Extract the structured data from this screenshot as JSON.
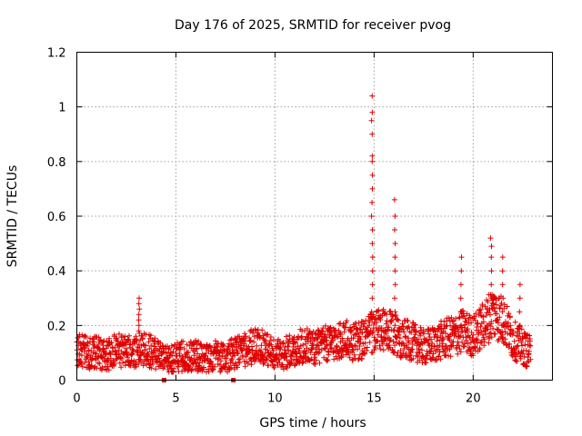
{
  "chart_data": {
    "type": "scatter",
    "title": "Day 176 of 2025, SRMTID for receiver pvog",
    "xlabel": "GPS time / hours",
    "ylabel": "SRMTID / TECUs",
    "xlim": [
      0,
      24
    ],
    "ylim": [
      0,
      1.2
    ],
    "x_ticks": [
      0,
      5,
      10,
      15,
      20
    ],
    "x_tick_labels": [
      "0",
      "5",
      "10",
      "15",
      "20"
    ],
    "y_ticks": [
      0,
      0.2,
      0.4,
      0.6,
      0.8,
      1.0,
      1.2
    ],
    "y_tick_labels": [
      "0",
      "0.2",
      "0.4",
      "0.6",
      "0.8",
      "1",
      "1.2"
    ],
    "grid": true,
    "series_color": "#e00000",
    "marker": "plus",
    "baseline": [
      [
        0.0,
        0.11
      ],
      [
        0.5,
        0.1
      ],
      [
        1.0,
        0.1
      ],
      [
        1.5,
        0.09
      ],
      [
        2.0,
        0.11
      ],
      [
        2.5,
        0.1
      ],
      [
        3.0,
        0.11
      ],
      [
        3.5,
        0.11
      ],
      [
        4.0,
        0.1
      ],
      [
        4.5,
        0.07
      ],
      [
        5.0,
        0.08
      ],
      [
        5.5,
        0.09
      ],
      [
        6.0,
        0.09
      ],
      [
        6.5,
        0.08
      ],
      [
        7.0,
        0.09
      ],
      [
        7.5,
        0.08
      ],
      [
        8.0,
        0.1
      ],
      [
        8.5,
        0.11
      ],
      [
        9.0,
        0.13
      ],
      [
        9.5,
        0.12
      ],
      [
        10.0,
        0.09
      ],
      [
        10.5,
        0.1
      ],
      [
        11.0,
        0.11
      ],
      [
        11.5,
        0.13
      ],
      [
        12.0,
        0.12
      ],
      [
        12.5,
        0.13
      ],
      [
        13.0,
        0.14
      ],
      [
        13.5,
        0.15
      ],
      [
        14.0,
        0.14
      ],
      [
        14.5,
        0.15
      ],
      [
        15.0,
        0.18
      ],
      [
        15.5,
        0.18
      ],
      [
        16.0,
        0.17
      ],
      [
        16.5,
        0.15
      ],
      [
        17.0,
        0.14
      ],
      [
        17.5,
        0.12
      ],
      [
        18.0,
        0.13
      ],
      [
        18.5,
        0.15
      ],
      [
        19.0,
        0.16
      ],
      [
        19.5,
        0.18
      ],
      [
        20.0,
        0.16
      ],
      [
        20.5,
        0.2
      ],
      [
        21.0,
        0.25
      ],
      [
        21.5,
        0.22
      ],
      [
        22.0,
        0.15
      ],
      [
        22.5,
        0.12
      ],
      [
        22.9,
        0.1
      ]
    ],
    "spikes": [
      {
        "x": 3.15,
        "values": [
          0.18,
          0.2,
          0.22,
          0.24,
          0.26,
          0.28,
          0.3
        ]
      },
      {
        "x": 14.9,
        "values": [
          0.25,
          0.3,
          0.35,
          0.4,
          0.45,
          0.5,
          0.55,
          0.6,
          0.65,
          0.7,
          0.75,
          0.8,
          0.82,
          0.9,
          0.95,
          0.98,
          1.04
        ]
      },
      {
        "x": 16.05,
        "values": [
          0.2,
          0.25,
          0.3,
          0.35,
          0.4,
          0.45,
          0.5,
          0.55,
          0.6,
          0.66
        ]
      },
      {
        "x": 19.4,
        "values": [
          0.2,
          0.25,
          0.3,
          0.35,
          0.4,
          0.45
        ]
      },
      {
        "x": 20.9,
        "values": [
          0.3,
          0.35,
          0.4,
          0.45,
          0.49,
          0.52
        ]
      },
      {
        "x": 21.5,
        "values": [
          0.25,
          0.3,
          0.35,
          0.4,
          0.45
        ]
      },
      {
        "x": 22.35,
        "values": [
          0.2,
          0.25,
          0.3,
          0.35
        ]
      }
    ],
    "square_markers": [
      {
        "x": 4.4,
        "y": 0.0
      },
      {
        "x": 7.9,
        "y": 0.0
      }
    ]
  }
}
